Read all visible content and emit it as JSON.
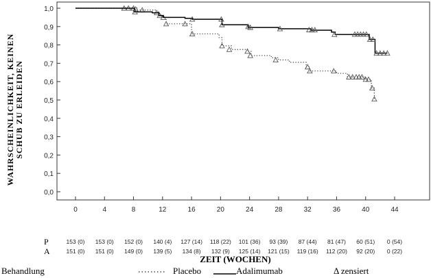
{
  "chart_data": {
    "type": "line",
    "subtype": "kaplan-meier",
    "ylabel_lines": [
      "WAHRSCHEINLICHKEIT, KEINEN",
      "SCHUB ZU ERLEIDEN"
    ],
    "xlabel": "ZEIT (WOCHEN)",
    "xlim": [
      0,
      44
    ],
    "ylim": [
      0,
      1
    ],
    "xticks": [
      "0",
      "4",
      "8",
      "12",
      "16",
      "20",
      "24",
      "28",
      "32",
      "36",
      "40",
      "44"
    ],
    "yticks": [
      "0,0",
      "0,1",
      "0,2",
      "0,3",
      "0,4",
      "0,5",
      "0,6",
      "0,7",
      "0,8",
      "0,9",
      "1,0"
    ],
    "series": [
      {
        "name": "Placebo",
        "style": "dotted",
        "steps": [
          [
            0,
            1.0
          ],
          [
            8.5,
            0.99
          ],
          [
            11,
            0.98
          ],
          [
            11.5,
            0.965
          ],
          [
            12,
            0.95
          ],
          [
            12.5,
            0.915
          ],
          [
            16,
            0.86
          ],
          [
            19.8,
            0.84
          ],
          [
            20.2,
            0.795
          ],
          [
            21.5,
            0.775
          ],
          [
            23.7,
            0.765
          ],
          [
            24.2,
            0.742
          ],
          [
            27,
            0.73
          ],
          [
            28,
            0.718
          ],
          [
            29.5,
            0.705
          ],
          [
            31.8,
            0.68
          ],
          [
            32.3,
            0.658
          ],
          [
            36,
            0.645
          ],
          [
            37.5,
            0.625
          ],
          [
            40,
            0.612
          ],
          [
            40.8,
            0.565
          ],
          [
            41.2,
            0.505
          ]
        ],
        "end": 41.4,
        "censored": [
          [
            6.7,
            1.0
          ],
          [
            7.3,
            1.0
          ],
          [
            8,
            1.0
          ],
          [
            8.3,
            0.995
          ],
          [
            9.2,
            0.99
          ],
          [
            11.2,
            0.975
          ],
          [
            11.6,
            0.96
          ],
          [
            12.1,
            0.95
          ],
          [
            12.5,
            0.915
          ],
          [
            15.1,
            0.915
          ],
          [
            16.1,
            0.86
          ],
          [
            20.2,
            0.795
          ],
          [
            21.2,
            0.775
          ],
          [
            23.7,
            0.765
          ],
          [
            24.1,
            0.742
          ],
          [
            27.6,
            0.718
          ],
          [
            32,
            0.68
          ],
          [
            32.3,
            0.658
          ],
          [
            35.6,
            0.658
          ],
          [
            37.7,
            0.625
          ],
          [
            38.2,
            0.625
          ],
          [
            38.7,
            0.625
          ],
          [
            39.1,
            0.625
          ],
          [
            39.5,
            0.625
          ],
          [
            40,
            0.612
          ],
          [
            40.4,
            0.612
          ],
          [
            40.9,
            0.565
          ],
          [
            41.2,
            0.505
          ]
        ]
      },
      {
        "name": "Adalimumab",
        "style": "solid",
        "steps": [
          [
            0,
            1.0
          ],
          [
            8.1,
            0.98
          ],
          [
            10.6,
            0.975
          ],
          [
            11.5,
            0.96
          ],
          [
            12.1,
            0.95
          ],
          [
            15.1,
            0.945
          ],
          [
            16.1,
            0.94
          ],
          [
            20.2,
            0.91
          ],
          [
            23.8,
            0.895
          ],
          [
            28,
            0.888
          ],
          [
            32.5,
            0.88
          ],
          [
            35.3,
            0.87
          ],
          [
            35.8,
            0.857
          ],
          [
            40.5,
            0.83
          ],
          [
            41.3,
            0.755
          ]
        ],
        "end": 43,
        "censored": [
          [
            8.2,
            0.98
          ],
          [
            16.1,
            0.94
          ],
          [
            20.1,
            0.94
          ],
          [
            20.2,
            0.91
          ],
          [
            23.8,
            0.9
          ],
          [
            24.1,
            0.895
          ],
          [
            28.2,
            0.888
          ],
          [
            32.2,
            0.882
          ],
          [
            32.6,
            0.882
          ],
          [
            33,
            0.882
          ],
          [
            35.7,
            0.857
          ],
          [
            38.5,
            0.858
          ],
          [
            38.9,
            0.858
          ],
          [
            39.3,
            0.858
          ],
          [
            39.7,
            0.858
          ],
          [
            40.1,
            0.858
          ],
          [
            40.6,
            0.83
          ],
          [
            41,
            0.83
          ],
          [
            41.5,
            0.755
          ],
          [
            42,
            0.755
          ],
          [
            42.5,
            0.755
          ],
          [
            43,
            0.755
          ]
        ]
      }
    ],
    "risk_table": {
      "rows": [
        {
          "label": "P",
          "values": [
            "153 (0)",
            "153 (0)",
            "152 (0)",
            "140 (4)",
            "127 (14)",
            "118 (22)",
            "101 (36)",
            "93 (39)",
            "87 (44)",
            "81 (47)",
            "60 (51)",
            "0 (54)"
          ]
        },
        {
          "label": "A",
          "values": [
            "151 (0)",
            "151 (0)",
            "149 (0)",
            "139 (5)",
            "134 (8)",
            "132 (9)",
            "125 (14)",
            "121 (15)",
            "119 (16)",
            "112 (20)",
            "92 (20)",
            "0 (22)"
          ]
        }
      ]
    },
    "legend": {
      "title": "Behandlung",
      "placebo": "Placebo",
      "adalimumab": "Adalimumab",
      "censored": "Δ zensiert"
    }
  }
}
